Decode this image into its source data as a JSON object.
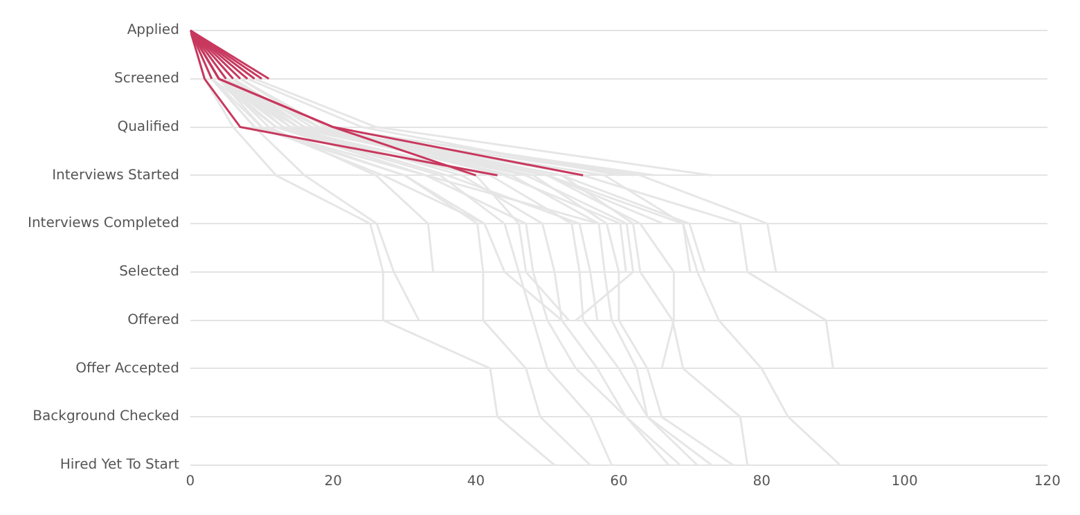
{
  "chart_data": {
    "type": "line",
    "orientation": "horizontal",
    "categories": [
      "Applied",
      "Screened",
      "Qualified",
      "Interviews Started",
      "Interviews Completed",
      "Selected",
      "Offered",
      "Offer Accepted",
      "Background Checked",
      "Hired Yet To Start"
    ],
    "xlim": [
      0,
      120
    ],
    "xticks": [
      0,
      20,
      40,
      60,
      80,
      100,
      120
    ],
    "grid": "y",
    "legend": false,
    "marker": "none",
    "line_style": "solid",
    "series": [
      {
        "color": "#e6e6e6",
        "values": [
          0,
          2,
          6,
          12,
          25.2,
          27,
          27,
          42,
          43,
          51
        ]
      },
      {
        "color": "#e6e6e6",
        "values": [
          0,
          3,
          10,
          30,
          40.2,
          41,
          41,
          47,
          49,
          56
        ]
      },
      {
        "color": "#e6e6e6",
        "values": [
          0,
          4,
          12,
          35,
          44,
          46,
          48,
          50,
          56,
          59
        ]
      },
      {
        "color": "#e6e6e6",
        "values": [
          0,
          3,
          9,
          33,
          47,
          48,
          50,
          54,
          61,
          67
        ]
      },
      {
        "color": "#e6e6e6",
        "values": [
          0,
          5,
          14,
          38,
          49.3,
          51,
          52,
          57,
          61,
          68.6
        ]
      },
      {
        "color": "#e6e6e6",
        "values": [
          0,
          4,
          13,
          42,
          53.4,
          54.5,
          55,
          60,
          64,
          71
        ]
      },
      {
        "color": "#e6e6e6",
        "values": [
          0,
          6,
          15,
          45,
          57.2,
          58,
          59,
          62.5,
          64,
          73
        ]
      },
      {
        "color": "#e6e6e6",
        "values": [
          0,
          5,
          16,
          48,
          58.3,
          60,
          60,
          64,
          66,
          76
        ]
      },
      {
        "color": "#e6e6e6",
        "values": [
          0,
          7,
          18,
          52,
          62,
          63,
          67.5,
          69,
          77,
          78
        ]
      },
      {
        "color": "#e6e6e6",
        "values": [
          0,
          5,
          15,
          58,
          69,
          71,
          74,
          80,
          83.7,
          91
        ]
      },
      {
        "color": "#e6e6e6",
        "values": [
          0,
          6,
          17,
          55,
          77,
          78,
          89,
          90,
          null,
          null
        ]
      },
      {
        "color": "#e6e6e6",
        "values": [
          0,
          7,
          19,
          63,
          80.8,
          82,
          null,
          null,
          null,
          null
        ]
      },
      {
        "color": "#e6e6e6",
        "values": [
          0,
          3,
          9,
          16,
          26.1,
          28.5,
          32,
          null,
          null,
          null
        ]
      },
      {
        "color": "#e6e6e6",
        "values": [
          0,
          4,
          10,
          27,
          41.2,
          44,
          52,
          null,
          null,
          null
        ]
      },
      {
        "color": "#e6e6e6",
        "values": [
          0,
          3,
          12,
          40,
          46,
          47,
          53,
          null,
          null,
          null
        ]
      },
      {
        "color": "#e6e6e6",
        "values": [
          0,
          6,
          16,
          50,
          63,
          67.7,
          67.7,
          66,
          null,
          null
        ]
      },
      {
        "color": "#e6e6e6",
        "values": [
          0,
          4,
          11,
          26,
          33.3,
          34,
          null,
          null,
          null,
          null
        ]
      },
      {
        "color": "#e6e6e6",
        "values": [
          0,
          5,
          13,
          36,
          54.5,
          56,
          57,
          null,
          null,
          null
        ]
      },
      {
        "color": "#e6e6e6",
        "values": [
          0,
          6,
          16,
          44,
          60.2,
          61,
          null,
          null,
          null,
          null
        ]
      },
      {
        "color": "#e6e6e6",
        "values": [
          0,
          4,
          14,
          47,
          61.1,
          62,
          54,
          null,
          null,
          null
        ]
      },
      {
        "color": "#e6e6e6",
        "values": [
          0,
          7,
          18,
          50,
          69,
          70,
          null,
          null,
          null,
          null
        ]
      },
      {
        "color": "#e6e6e6",
        "values": [
          0,
          5,
          15,
          52,
          69.9,
          72,
          null,
          null,
          null,
          null
        ]
      },
      {
        "color": "#e6e6e6",
        "values": [
          0,
          3,
          9,
          30,
          41.2,
          null,
          null,
          null,
          null,
          null
        ]
      },
      {
        "color": "#e6e6e6",
        "values": [
          0,
          4,
          12,
          33,
          57.2,
          null,
          null,
          null,
          null,
          null
        ]
      },
      {
        "color": "#e6e6e6",
        "values": [
          0,
          6,
          14,
          50,
          66.2,
          null,
          null,
          null,
          null,
          null
        ]
      },
      {
        "color": "#e6e6e6",
        "values": [
          0,
          4,
          15,
          62,
          null,
          null,
          null,
          null,
          null,
          null
        ]
      },
      {
        "color": "#e6e6e6",
        "values": [
          0,
          5,
          18,
          65,
          null,
          null,
          null,
          null,
          null,
          null
        ]
      },
      {
        "color": "#e6e6e6",
        "values": [
          0,
          8,
          24,
          60,
          null,
          null,
          null,
          null,
          null,
          null
        ]
      },
      {
        "color": "#e6e6e6",
        "values": [
          0,
          9,
          26,
          73,
          null,
          null,
          null,
          null,
          null,
          null
        ]
      },
      {
        "color": "#c8385e",
        "values": [
          0,
          3,
          null,
          null,
          null,
          null,
          null,
          null,
          null,
          null
        ]
      },
      {
        "color": "#c8385e",
        "values": [
          0,
          4,
          null,
          null,
          null,
          null,
          null,
          null,
          null,
          null
        ]
      },
      {
        "color": "#c8385e",
        "values": [
          0,
          5,
          null,
          null,
          null,
          null,
          null,
          null,
          null,
          null
        ]
      },
      {
        "color": "#c8385e",
        "values": [
          0,
          6,
          null,
          null,
          null,
          null,
          null,
          null,
          null,
          null
        ]
      },
      {
        "color": "#c8385e",
        "values": [
          0,
          7,
          null,
          null,
          null,
          null,
          null,
          null,
          null,
          null
        ]
      },
      {
        "color": "#c8385e",
        "values": [
          0,
          8,
          null,
          null,
          null,
          null,
          null,
          null,
          null,
          null
        ]
      },
      {
        "color": "#c8385e",
        "values": [
          0,
          9,
          null,
          null,
          null,
          null,
          null,
          null,
          null,
          null
        ]
      },
      {
        "color": "#c8385e",
        "values": [
          0,
          10,
          null,
          null,
          null,
          null,
          null,
          null,
          null,
          null
        ]
      },
      {
        "color": "#c8385e",
        "values": [
          0,
          11,
          null,
          null,
          null,
          null,
          null,
          null,
          null,
          null
        ]
      },
      {
        "color": "#c8385e",
        "values": [
          0,
          2,
          7,
          43,
          null,
          null,
          null,
          null,
          null,
          null
        ]
      },
      {
        "color": "#c8385e",
        "values": [
          0,
          4,
          20,
          40,
          null,
          null,
          null,
          null,
          null,
          null
        ]
      },
      {
        "color": "#c8385e",
        "values": [
          0,
          4,
          20,
          55,
          null,
          null,
          null,
          null,
          null,
          null
        ]
      }
    ]
  }
}
